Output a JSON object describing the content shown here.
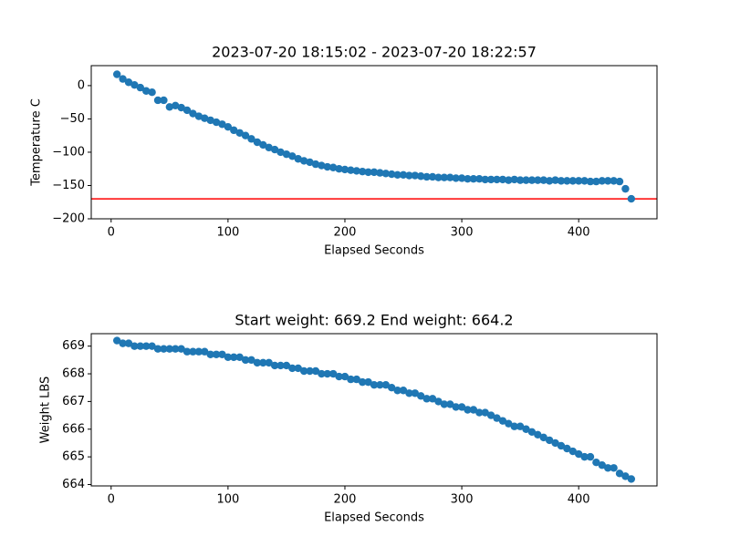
{
  "chart_data": [
    {
      "type": "scatter",
      "title": "2023-07-20 18:15:02 - 2023-07-20 18:22:57",
      "xlabel": "Elapsed Seconds",
      "ylabel": "Temperature C",
      "x": [
        5,
        10,
        15,
        20,
        25,
        30,
        35,
        40,
        45,
        50,
        55,
        60,
        65,
        70,
        75,
        80,
        85,
        90,
        95,
        100,
        105,
        110,
        115,
        120,
        125,
        130,
        135,
        140,
        145,
        150,
        155,
        160,
        165,
        170,
        175,
        180,
        185,
        190,
        195,
        200,
        205,
        210,
        215,
        220,
        225,
        230,
        235,
        240,
        245,
        250,
        255,
        260,
        265,
        270,
        275,
        280,
        285,
        290,
        295,
        300,
        305,
        310,
        315,
        320,
        325,
        330,
        335,
        340,
        345,
        350,
        355,
        360,
        365,
        370,
        375,
        380,
        385,
        390,
        395,
        400,
        405,
        410,
        415,
        420,
        425,
        430,
        435,
        440,
        445
      ],
      "series": [
        {
          "color": "#1f77b4",
          "values": [
            17,
            10,
            5,
            1,
            -3,
            -8,
            -10,
            -22,
            -22,
            -32,
            -30,
            -33,
            -37,
            -42,
            -46,
            -49,
            -52,
            -55,
            -58,
            -62,
            -67,
            -71,
            -75,
            -80,
            -85,
            -89,
            -93,
            -96,
            -100,
            -103,
            -106,
            -110,
            -113,
            -115,
            -118,
            -120,
            -122,
            -123,
            -125,
            -126,
            -127,
            -128,
            -129,
            -130,
            -130,
            -131,
            -132,
            -133,
            -134,
            -134,
            -135,
            -135,
            -136,
            -137,
            -137,
            -138,
            -138,
            -138,
            -139,
            -139,
            -140,
            -140,
            -140,
            -141,
            -141,
            -141,
            -141,
            -142,
            -141,
            -142,
            -142,
            -142,
            -142,
            -142,
            -143,
            -142,
            -143,
            -143,
            -143,
            -143,
            -143,
            -144,
            -144,
            -143,
            -143,
            -143,
            -144,
            -155,
            -170
          ]
        }
      ],
      "hline": {
        "value": -170,
        "color": "#ff0000"
      },
      "xlim": [
        -17,
        467
      ],
      "ylim": [
        -200,
        30
      ],
      "xticks": [
        0,
        100,
        200,
        300,
        400
      ],
      "yticks": [
        {
          "value": -200,
          "label": "−200"
        },
        {
          "value": -150,
          "label": "−150"
        },
        {
          "value": -100,
          "label": "−100"
        },
        {
          "value": -50,
          "label": "−50"
        },
        0
      ]
    },
    {
      "type": "scatter",
      "title": "Start weight: 669.2 End weight: 664.2",
      "xlabel": "Elapsed Seconds",
      "ylabel": "Weight LBS",
      "x": [
        5,
        10,
        15,
        20,
        25,
        30,
        35,
        40,
        45,
        50,
        55,
        60,
        65,
        70,
        75,
        80,
        85,
        90,
        95,
        100,
        105,
        110,
        115,
        120,
        125,
        130,
        135,
        140,
        145,
        150,
        155,
        160,
        165,
        170,
        175,
        180,
        185,
        190,
        195,
        200,
        205,
        210,
        215,
        220,
        225,
        230,
        235,
        240,
        245,
        250,
        255,
        260,
        265,
        270,
        275,
        280,
        285,
        290,
        295,
        300,
        305,
        310,
        315,
        320,
        325,
        330,
        335,
        340,
        345,
        350,
        355,
        360,
        365,
        370,
        375,
        380,
        385,
        390,
        395,
        400,
        405,
        410,
        415,
        420,
        425,
        430,
        435,
        440,
        445
      ],
      "series": [
        {
          "color": "#1f77b4",
          "values": [
            669.2,
            669.1,
            669.1,
            669.0,
            669.0,
            669.0,
            669.0,
            668.9,
            668.9,
            668.9,
            668.9,
            668.9,
            668.8,
            668.8,
            668.8,
            668.8,
            668.7,
            668.7,
            668.7,
            668.6,
            668.6,
            668.6,
            668.5,
            668.5,
            668.4,
            668.4,
            668.4,
            668.3,
            668.3,
            668.3,
            668.2,
            668.2,
            668.1,
            668.1,
            668.1,
            668.0,
            668.0,
            668.0,
            667.9,
            667.9,
            667.8,
            667.8,
            667.7,
            667.7,
            667.6,
            667.6,
            667.6,
            667.5,
            667.4,
            667.4,
            667.3,
            667.3,
            667.2,
            667.1,
            667.1,
            667.0,
            666.9,
            666.9,
            666.8,
            666.8,
            666.7,
            666.7,
            666.6,
            666.6,
            666.5,
            666.4,
            666.3,
            666.2,
            666.1,
            666.1,
            666.0,
            665.9,
            665.8,
            665.7,
            665.6,
            665.5,
            665.4,
            665.3,
            665.2,
            665.1,
            665.0,
            665.0,
            664.8,
            664.7,
            664.6,
            664.6,
            664.4,
            664.3,
            664.2
          ]
        }
      ],
      "xlim": [
        -17,
        467
      ],
      "ylim": [
        663.95,
        669.45
      ],
      "xticks": [
        0,
        100,
        200,
        300,
        400
      ],
      "yticks": [
        664,
        665,
        666,
        667,
        668,
        669
      ]
    }
  ]
}
